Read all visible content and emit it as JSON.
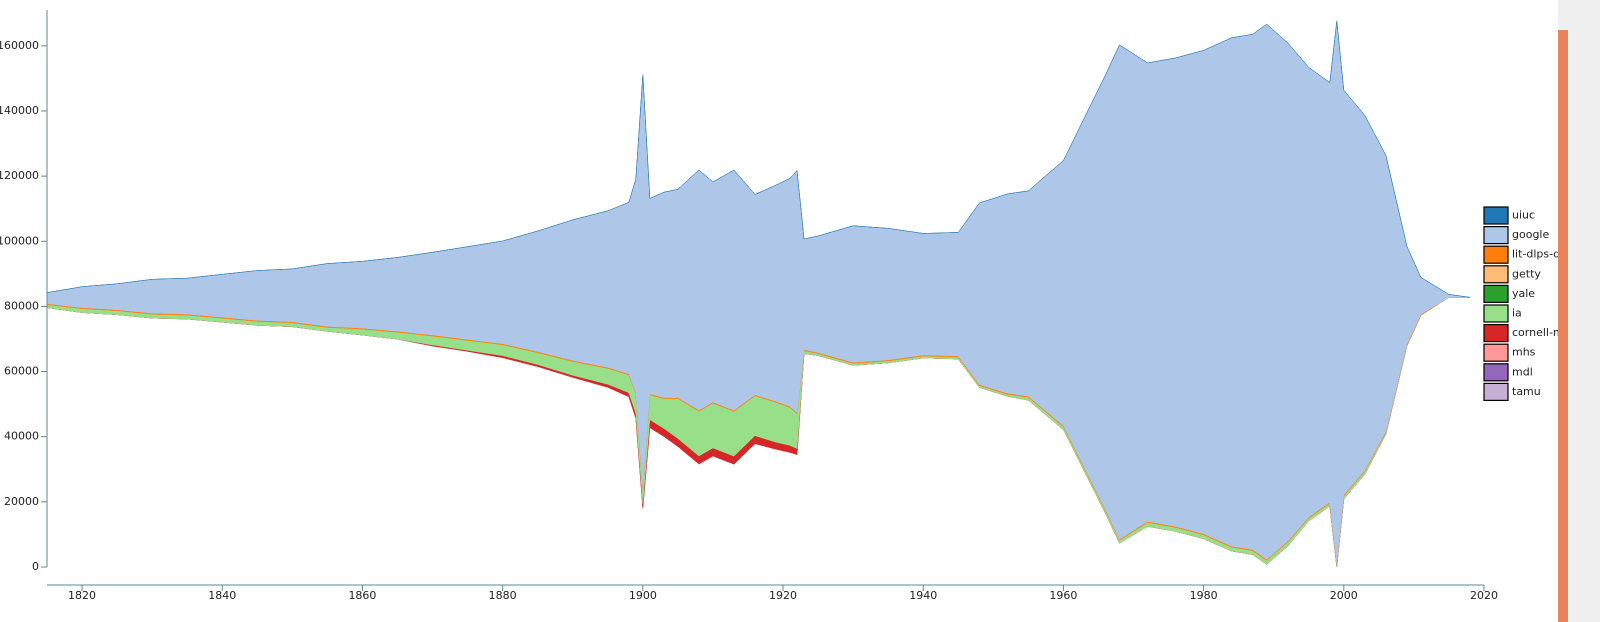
{
  "chart_data": {
    "type": "streamgraph",
    "x": [
      1815,
      1820,
      1825,
      1830,
      1835,
      1840,
      1845,
      1850,
      1855,
      1860,
      1865,
      1870,
      1875,
      1880,
      1885,
      1890,
      1895,
      1898,
      1899,
      1900,
      1901,
      1903,
      1905,
      1908,
      1910,
      1913,
      1916,
      1919,
      1921,
      1922,
      1923,
      1925,
      1930,
      1935,
      1940,
      1945,
      1948,
      1952,
      1955,
      1960,
      1963,
      1966,
      1968,
      1972,
      1976,
      1980,
      1984,
      1987,
      1989,
      1992,
      1995,
      1998,
      1999,
      2000,
      2003,
      2006,
      2009,
      2011,
      2015,
      2018
    ],
    "xlim": [
      1815,
      2020
    ],
    "xticks": [
      1820,
      1840,
      1860,
      1880,
      1900,
      1920,
      1940,
      1960,
      1980,
      2000,
      2020
    ],
    "ylim": [
      0,
      171000
    ],
    "yticks": [
      0,
      20000,
      40000,
      60000,
      80000,
      100000,
      120000,
      140000,
      160000
    ],
    "legend": "right",
    "series": [
      {
        "name": "uiuc",
        "color": "#1f77b4",
        "values": [
          0,
          0,
          0,
          0,
          0,
          0,
          0,
          0,
          0,
          0,
          0,
          0,
          0,
          0,
          0,
          0,
          0,
          0,
          0,
          0,
          0,
          0,
          0,
          0,
          0,
          0,
          0,
          0,
          0,
          0,
          0,
          0,
          0,
          0,
          0,
          0,
          0,
          0,
          0,
          0,
          0,
          0,
          0,
          0,
          0,
          0,
          0,
          0,
          0,
          0,
          0,
          0,
          0,
          0,
          0,
          0,
          0,
          0,
          0,
          0
        ]
      },
      {
        "name": "google",
        "color": "#aec7e8",
        "values": [
          3370,
          6430,
          7960,
          10400,
          11020,
          13160,
          15300,
          16220,
          19280,
          20500,
          22640,
          25400,
          28460,
          31520,
          37030,
          43150,
          48040,
          52630,
          65480,
          126680,
          59980,
          63040,
          63950,
          73750,
          67630,
          73750,
          61510,
          66400,
          70070,
          74360,
          33970,
          35800,
          41920,
          40390,
          37330,
          37940,
          55690,
          61200,
          63040,
          81400,
          107410,
          133420,
          151780,
          140760,
          143820,
          148410,
          156060,
          158200,
          164320,
          153000,
          138010,
          128830,
          166460,
          124240,
          108940,
          84760,
          29990,
          11320,
          900,
          0
        ]
      },
      {
        "name": "lit-dlps-dc",
        "color": "#ff7f0e",
        "values": [
          300,
          300,
          300,
          300,
          300,
          300,
          300,
          300,
          300,
          300,
          300,
          300,
          300,
          300,
          300,
          300,
          300,
          300,
          300,
          300,
          300,
          300,
          300,
          300,
          300,
          300,
          300,
          300,
          300,
          300,
          300,
          300,
          300,
          300,
          300,
          300,
          300,
          300,
          300,
          300,
          300,
          300,
          300,
          300,
          300,
          300,
          300,
          300,
          300,
          300,
          300,
          300,
          300,
          300,
          300,
          300,
          300,
          300,
          0,
          0
        ]
      },
      {
        "name": "getty",
        "color": "#ffbb78",
        "values": [
          0,
          0,
          0,
          0,
          0,
          0,
          0,
          0,
          0,
          0,
          0,
          0,
          0,
          0,
          0,
          0,
          0,
          0,
          0,
          0,
          0,
          0,
          0,
          0,
          0,
          0,
          0,
          0,
          0,
          0,
          0,
          0,
          0,
          0,
          0,
          0,
          0,
          0,
          0,
          0,
          0,
          0,
          0,
          0,
          0,
          0,
          0,
          0,
          0,
          0,
          0,
          0,
          0,
          0,
          0,
          0,
          0,
          0,
          0,
          0
        ]
      },
      {
        "name": "yale",
        "color": "#2ca02c",
        "values": [
          0,
          0,
          0,
          0,
          0,
          0,
          0,
          0,
          0,
          0,
          0,
          0,
          0,
          0,
          0,
          0,
          0,
          0,
          0,
          0,
          0,
          0,
          0,
          0,
          0,
          0,
          0,
          0,
          0,
          0,
          0,
          0,
          0,
          0,
          0,
          0,
          0,
          0,
          0,
          0,
          0,
          0,
          0,
          0,
          0,
          0,
          0,
          0,
          0,
          0,
          0,
          0,
          0,
          0,
          0,
          0,
          0,
          0,
          0,
          0
        ]
      },
      {
        "name": "ia",
        "color": "#98df8a",
        "values": [
          920,
          1220,
          1220,
          1220,
          1220,
          1220,
          1220,
          1220,
          1220,
          1840,
          2140,
          2750,
          3060,
          3370,
          3670,
          4280,
          4900,
          5510,
          6120,
          4590,
          7650,
          9180,
          12240,
          13770,
          13770,
          13770,
          12240,
          12240,
          11630,
          10710,
          920,
          610,
          610,
          610,
          610,
          610,
          610,
          610,
          920,
          920,
          920,
          920,
          920,
          1220,
          1220,
          1220,
          1220,
          1220,
          1220,
          1220,
          920,
          920,
          920,
          920,
          920,
          610,
          310,
          0,
          0,
          0
        ]
      },
      {
        "name": "cornell-mayan",
        "color": "#d62728",
        "values": [
          0,
          0,
          0,
          0,
          0,
          0,
          0,
          0,
          0,
          0,
          0,
          310,
          310,
          610,
          610,
          610,
          920,
          1220,
          1530,
          1530,
          2450,
          2450,
          2450,
          2450,
          2450,
          2450,
          2450,
          2140,
          2140,
          1840,
          0,
          0,
          0,
          0,
          0,
          0,
          0,
          0,
          0,
          0,
          0,
          0,
          0,
          0,
          0,
          0,
          0,
          0,
          0,
          0,
          0,
          0,
          0,
          0,
          0,
          0,
          0,
          0,
          0,
          0
        ]
      },
      {
        "name": "mhs",
        "color": "#ff9896",
        "values": [
          0,
          0,
          0,
          0,
          0,
          0,
          0,
          0,
          0,
          0,
          0,
          0,
          0,
          0,
          0,
          0,
          0,
          0,
          0,
          0,
          0,
          0,
          0,
          0,
          0,
          0,
          0,
          0,
          0,
          0,
          0,
          0,
          0,
          0,
          0,
          0,
          0,
          0,
          0,
          0,
          0,
          0,
          0,
          0,
          0,
          0,
          0,
          0,
          0,
          0,
          0,
          0,
          0,
          0,
          0,
          0,
          0,
          0,
          0,
          0
        ]
      },
      {
        "name": "mdl",
        "color": "#9467bd",
        "values": [
          0,
          0,
          0,
          0,
          0,
          0,
          0,
          0,
          0,
          0,
          0,
          0,
          0,
          0,
          0,
          0,
          0,
          0,
          0,
          0,
          0,
          0,
          0,
          0,
          0,
          0,
          0,
          0,
          0,
          0,
          0,
          0,
          0,
          0,
          0,
          0,
          0,
          0,
          0,
          0,
          0,
          0,
          0,
          0,
          0,
          0,
          0,
          0,
          0,
          0,
          0,
          0,
          0,
          0,
          0,
          0,
          0,
          0,
          0,
          0
        ]
      },
      {
        "name": "tamu",
        "color": "#c5b0d5",
        "values": [
          0,
          0,
          0,
          0,
          0,
          0,
          0,
          0,
          0,
          0,
          0,
          0,
          0,
          0,
          0,
          0,
          0,
          0,
          0,
          0,
          0,
          0,
          0,
          0,
          0,
          0,
          0,
          0,
          0,
          0,
          0,
          0,
          0,
          0,
          0,
          0,
          0,
          0,
          0,
          0,
          0,
          0,
          0,
          0,
          0,
          0,
          0,
          0,
          0,
          0,
          0,
          0,
          0,
          0,
          0,
          0,
          0,
          0,
          0,
          0
        ]
      }
    ]
  }
}
